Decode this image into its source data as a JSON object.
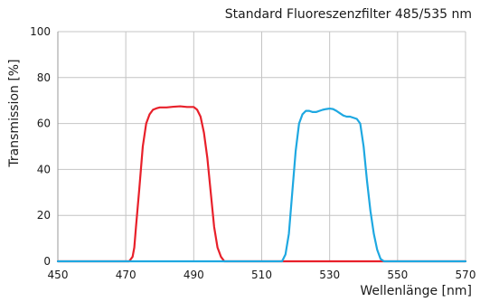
{
  "chart_data": {
    "type": "line",
    "title": "Standard Fluoreszenzfilter 485/535 nm",
    "xlabel": "Wellenlänge [nm]",
    "ylabel": "Transmission [%]",
    "xlim": [
      450,
      570
    ],
    "ylim": [
      0,
      100
    ],
    "xticks": [
      450,
      470,
      490,
      510,
      530,
      550,
      570
    ],
    "yticks": [
      0,
      20,
      40,
      60,
      80,
      100
    ],
    "grid": true,
    "legend": "none",
    "series": [
      {
        "color": "#e8202a",
        "points": [
          [
            450,
            0
          ],
          [
            470,
            0
          ],
          [
            471,
            0
          ],
          [
            472,
            2
          ],
          [
            472.5,
            6
          ],
          [
            473,
            15
          ],
          [
            474,
            32
          ],
          [
            475,
            50
          ],
          [
            476,
            60
          ],
          [
            477,
            64
          ],
          [
            478,
            66
          ],
          [
            479,
            66.6
          ],
          [
            480,
            67
          ],
          [
            482,
            67
          ],
          [
            484,
            67.3
          ],
          [
            486,
            67.5
          ],
          [
            488,
            67.2
          ],
          [
            490,
            67.2
          ],
          [
            491,
            66
          ],
          [
            492,
            63
          ],
          [
            493,
            56
          ],
          [
            494,
            45
          ],
          [
            495,
            30
          ],
          [
            496,
            15
          ],
          [
            497,
            6
          ],
          [
            498,
            2
          ],
          [
            499,
            0
          ],
          [
            570,
            0
          ]
        ]
      },
      {
        "color": "#1ea8e1",
        "points": [
          [
            450,
            0
          ],
          [
            516,
            0
          ],
          [
            517,
            3
          ],
          [
            518,
            12
          ],
          [
            519,
            30
          ],
          [
            520,
            48
          ],
          [
            521,
            60
          ],
          [
            522,
            64
          ],
          [
            523,
            65.5
          ],
          [
            524,
            65.5
          ],
          [
            525,
            65
          ],
          [
            526,
            65
          ],
          [
            527,
            65.5
          ],
          [
            528,
            66
          ],
          [
            529,
            66.3
          ],
          [
            530,
            66.5
          ],
          [
            531,
            66.3
          ],
          [
            532,
            65.5
          ],
          [
            533,
            64.5
          ],
          [
            534,
            63.5
          ],
          [
            535,
            63
          ],
          [
            536,
            63
          ],
          [
            537,
            62.5
          ],
          [
            538,
            62
          ],
          [
            539,
            60
          ],
          [
            540,
            50
          ],
          [
            541,
            35
          ],
          [
            542,
            22
          ],
          [
            543,
            12
          ],
          [
            544,
            5
          ],
          [
            545,
            1
          ],
          [
            546,
            0
          ],
          [
            570,
            0
          ]
        ]
      }
    ]
  }
}
